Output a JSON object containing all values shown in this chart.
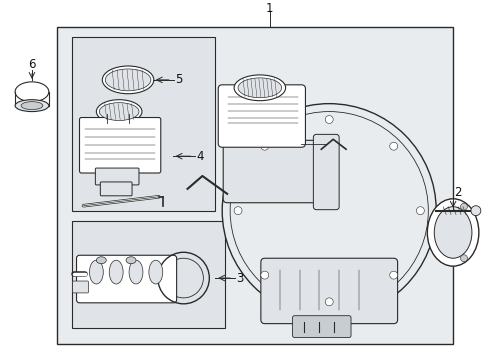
{
  "bg_color": "#ffffff",
  "panel_bg": "#e8ecef",
  "line_color": "#2a2a2a",
  "white": "#ffffff",
  "light_gray": "#e0e4e8",
  "mid_gray": "#c8cdd2",
  "dark_gray": "#9aa0a6",
  "label_fontsize": 8.5,
  "lw": 0.7
}
